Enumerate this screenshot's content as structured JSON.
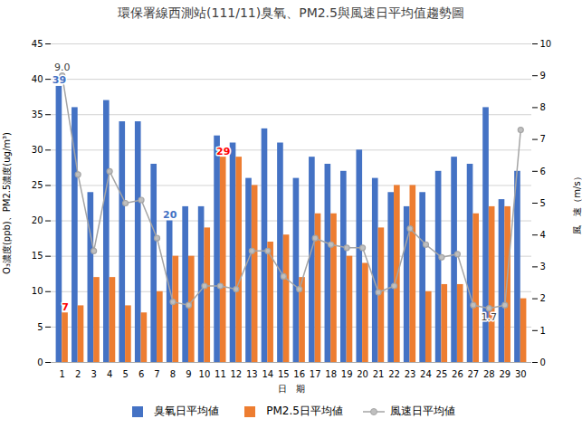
{
  "chart_data": {
    "type": "bar",
    "title": "環保署線西測站(111/11)臭氧、PM2.5與風速日平均值趨勢圖",
    "x_label": "日　期",
    "y_label": "O₃濃度(ppb)、PM2.5濃度(ug/m³)",
    "y2_label": "風　速（m/s）",
    "categories": [
      1,
      2,
      3,
      4,
      5,
      6,
      7,
      8,
      9,
      10,
      11,
      12,
      13,
      14,
      15,
      16,
      17,
      18,
      19,
      20,
      21,
      22,
      23,
      24,
      25,
      26,
      27,
      28,
      29,
      30
    ],
    "series": [
      {
        "name": "臭氧日平均値",
        "type": "bar",
        "color": "#4472C4",
        "values": [
          39,
          36,
          24,
          37,
          34,
          34,
          28,
          20,
          22,
          22,
          32,
          31,
          26,
          33,
          31,
          26,
          29,
          28,
          27,
          30,
          26,
          24,
          22,
          24,
          27,
          29,
          28,
          36,
          23,
          27
        ]
      },
      {
        "name": "PM2.5日平均値",
        "type": "bar",
        "color": "#ED7D31",
        "values": [
          7,
          8,
          12,
          12,
          8,
          7,
          10,
          15,
          15,
          19,
          29,
          29,
          25,
          17,
          18,
          12,
          21,
          21,
          15,
          14,
          19,
          25,
          25,
          10,
          11,
          11,
          21,
          22,
          22,
          9
        ]
      },
      {
        "name": "風速日平均値",
        "type": "line",
        "axis": "y2",
        "color": "#A5A5A5",
        "marker": "circle",
        "values": [
          9.0,
          5.9,
          3.5,
          6.0,
          5.0,
          5.1,
          3.9,
          1.9,
          1.8,
          2.4,
          2.4,
          2.3,
          3.5,
          3.5,
          2.7,
          2.3,
          3.9,
          3.7,
          3.6,
          3.6,
          2.2,
          2.4,
          4.2,
          3.7,
          3.3,
          3.4,
          1.8,
          1.7,
          1.8,
          7.3
        ]
      }
    ],
    "ylim": [
      0,
      45
    ],
    "yticks": [
      0,
      5,
      10,
      15,
      20,
      25,
      30,
      35,
      40,
      45
    ],
    "y2lim": [
      0,
      10
    ],
    "y2ticks": [
      0,
      1,
      2,
      3,
      4,
      5,
      6,
      7,
      8,
      9,
      10
    ],
    "grid": true,
    "legend": "bottom",
    "annotations": [
      {
        "text": "39",
        "x": 1,
        "series": "臭氧日平均値",
        "color": "#4472C4"
      },
      {
        "text": "7",
        "x": 1,
        "series": "PM2.5日平均値",
        "color": "#FF0000"
      },
      {
        "text": "9.0",
        "x": 1,
        "series": "風速日平均値",
        "color": "#404040"
      },
      {
        "text": "20",
        "x": 8,
        "series": "臭氧日平均値",
        "color": "#4472C4"
      },
      {
        "text": "29",
        "x": 11,
        "series": "PM2.5日平均値",
        "color": "#FF0000"
      },
      {
        "text": "1.7",
        "x": 28,
        "series": "風速日平均値",
        "color": "#404040"
      }
    ]
  }
}
